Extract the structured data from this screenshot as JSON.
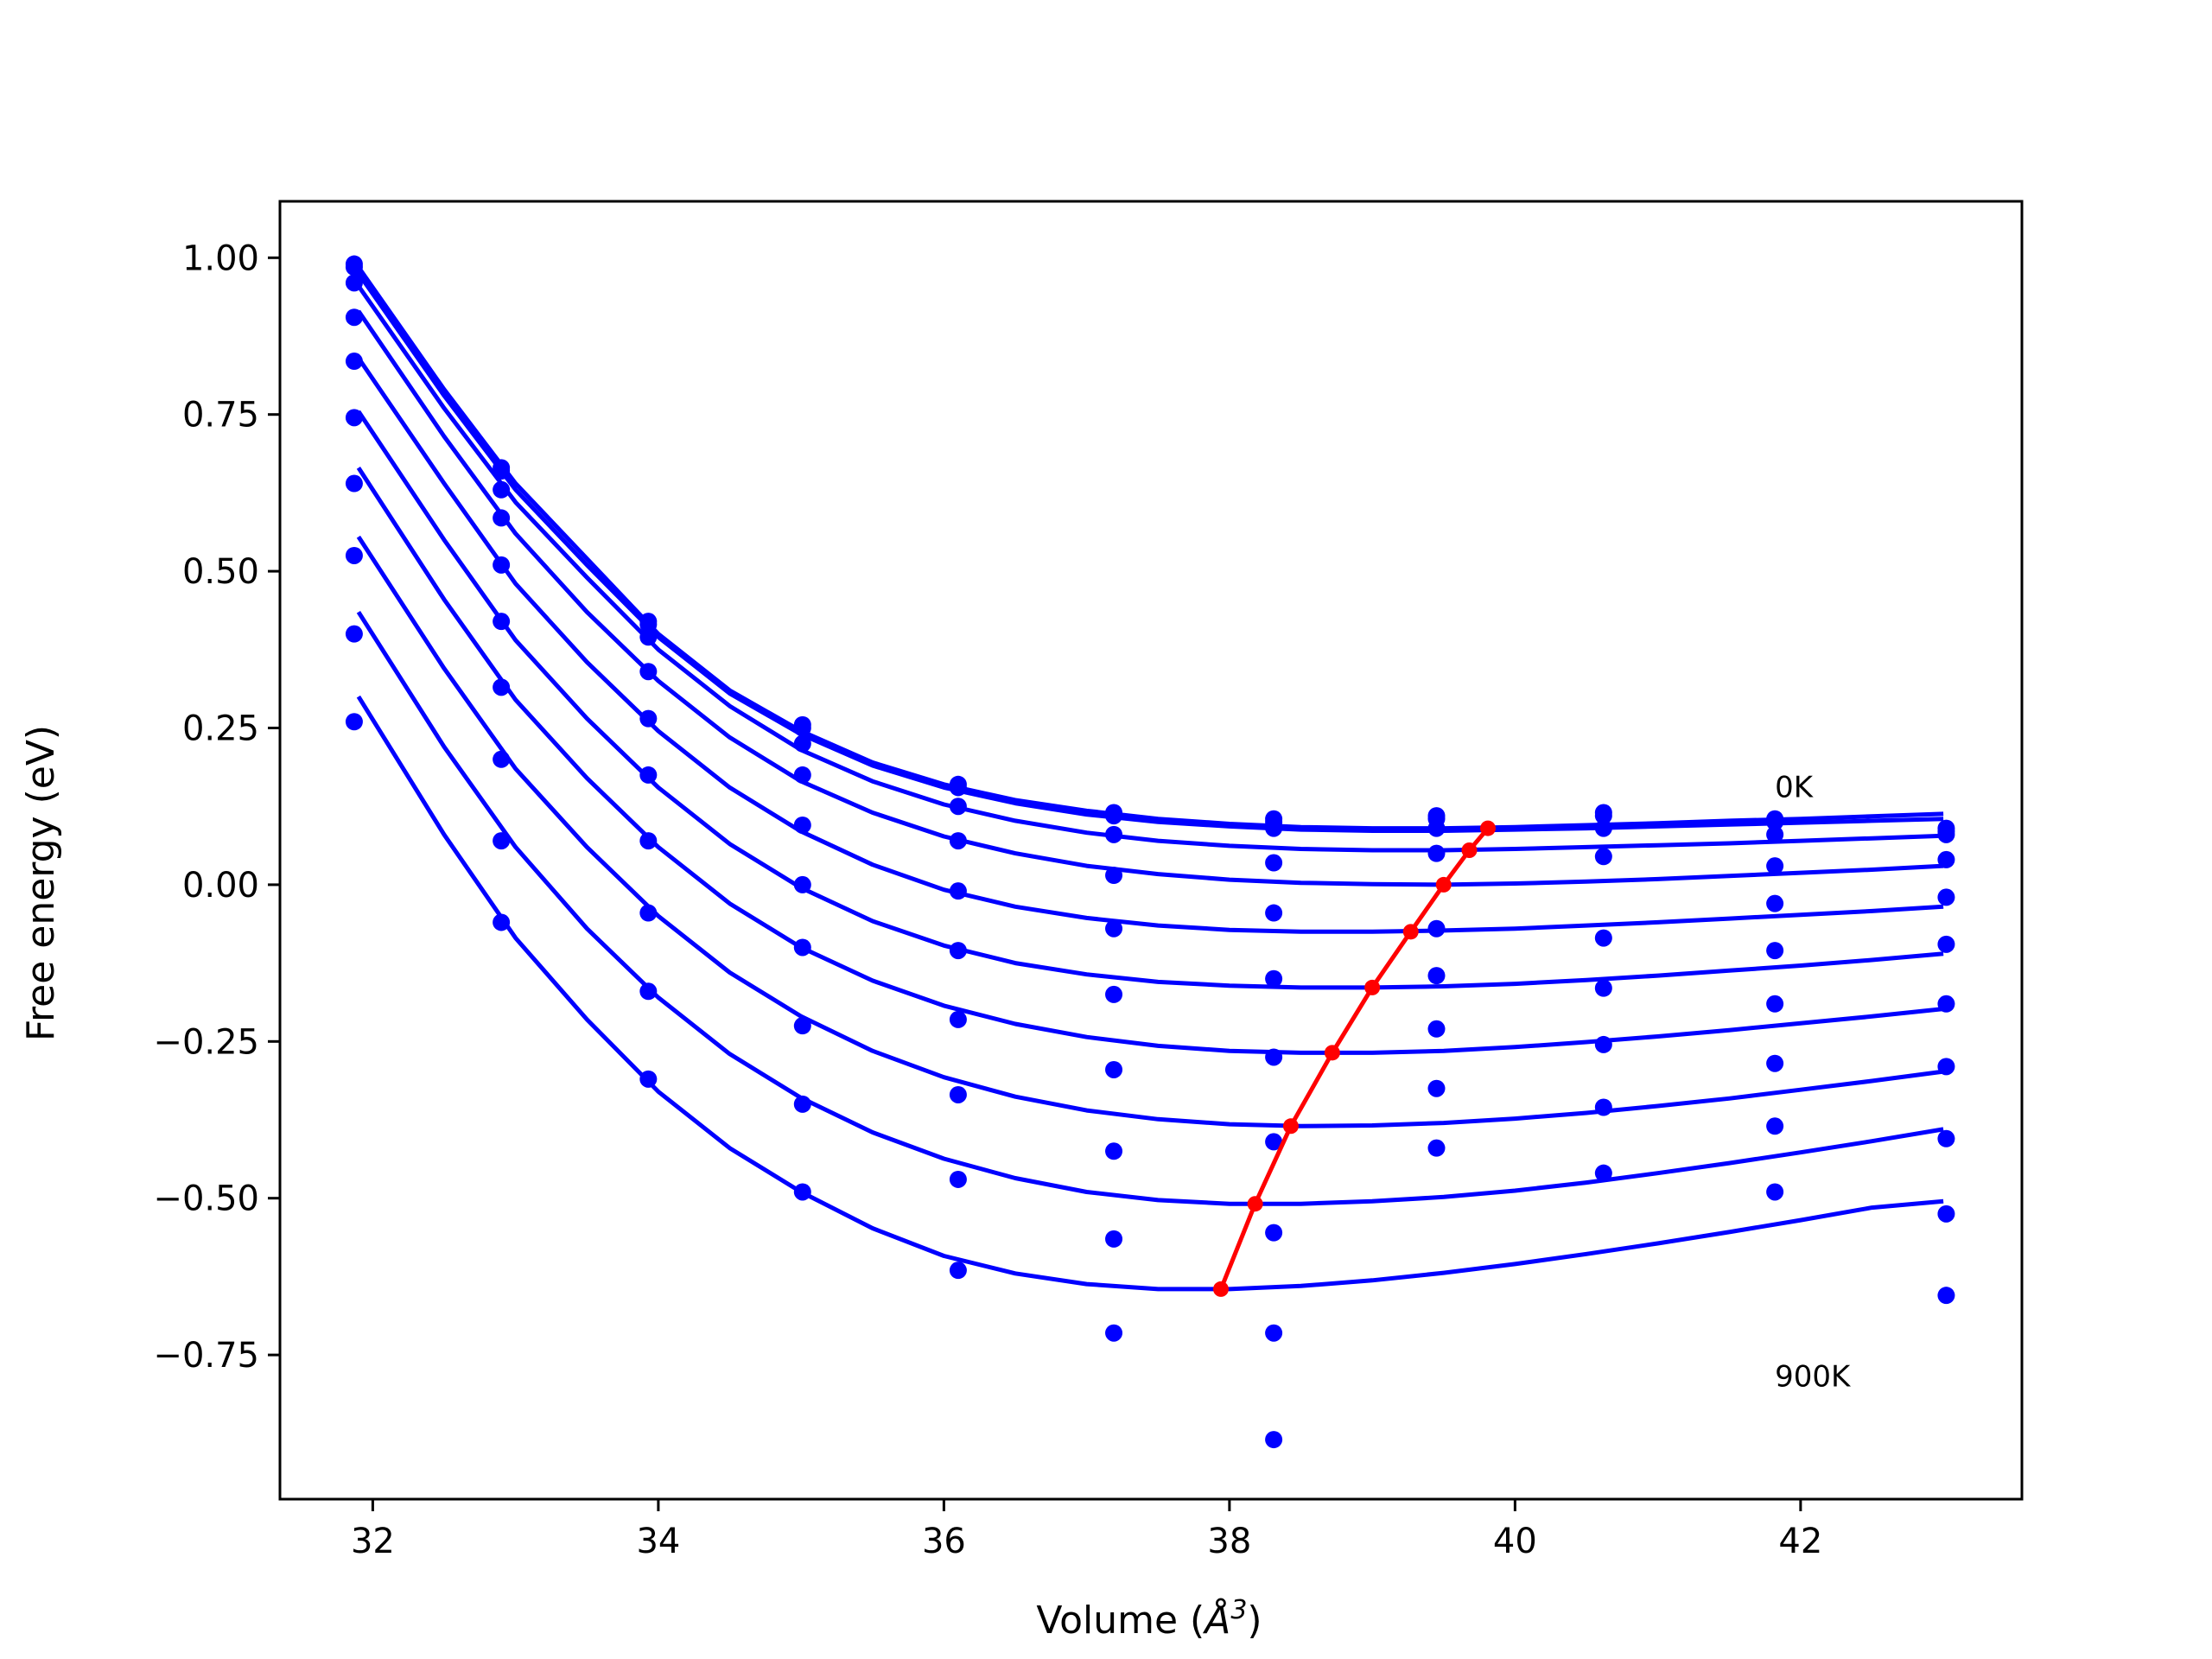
{
  "chart_data": {
    "type": "scatter",
    "xlabel_text": "Volume (",
    "xlabel_unit": "Å",
    "xlabel_sup": "3",
    "xlabel_close": ")",
    "ylabel": "Free energy (eV)",
    "xlim": [
      31.35,
      43.55
    ],
    "ylim": [
      -0.98,
      1.09
    ],
    "xticks": [
      32,
      34,
      36,
      38,
      40,
      42
    ],
    "xtick_labels": [
      "32",
      "34",
      "36",
      "38",
      "40",
      "42"
    ],
    "yticks": [
      1.0,
      0.75,
      0.5,
      0.25,
      0.0,
      -0.25,
      -0.5,
      -0.75
    ],
    "ytick_labels": [
      "1.00",
      "0.75",
      "0.50",
      "0.25",
      "0.00",
      "−0.25",
      "−0.50",
      "−0.75"
    ],
    "annotations": [
      {
        "text": "0K",
        "x": 41.82,
        "y": 0.14
      },
      {
        "text": "900K",
        "x": 41.82,
        "y": -0.8
      }
    ],
    "colors": {
      "points": "#0000ff",
      "fits": "#0000ff",
      "minima": "#ff0000"
    },
    "x": [
      31.87,
      32.9,
      33.93,
      35.01,
      36.1,
      37.19,
      38.31,
      39.45,
      40.62,
      41.82,
      43.02
    ],
    "series": [
      {
        "values": [
          0.99,
          0.665,
          0.42,
          0.255,
          0.16,
          0.115,
          0.105,
          0.11,
          0.115,
          0.105,
          0.09
        ]
      },
      {
        "values": [
          0.985,
          0.66,
          0.415,
          0.25,
          0.155,
          0.11,
          0.1,
          0.105,
          0.11,
          0.1,
          0.085
        ]
      },
      {
        "values": [
          0.96,
          0.63,
          0.395,
          0.225,
          0.125,
          0.08,
          0.09,
          0.09,
          0.09,
          0.08,
          0.08
        ]
      },
      {
        "values": [
          0.905,
          0.585,
          0.34,
          0.175,
          0.07,
          0.015,
          0.035,
          0.05,
          0.045,
          0.03,
          0.04
        ]
      },
      {
        "values": [
          0.835,
          0.51,
          0.265,
          0.095,
          -0.01,
          -0.07,
          -0.045,
          -0.07,
          -0.085,
          -0.03,
          -0.02
        ]
      },
      {
        "values": [
          0.745,
          0.42,
          0.175,
          0.0,
          -0.105,
          -0.175,
          -0.15,
          -0.145,
          -0.165,
          -0.105,
          -0.095
        ]
      },
      {
        "values": [
          0.64,
          0.315,
          0.07,
          -0.1,
          -0.215,
          -0.295,
          -0.275,
          -0.23,
          -0.255,
          -0.19,
          -0.19
        ]
      },
      {
        "values": [
          0.525,
          0.2,
          -0.045,
          -0.225,
          -0.335,
          -0.425,
          -0.41,
          -0.325,
          -0.355,
          -0.285,
          -0.29
        ]
      },
      {
        "values": [
          0.4,
          0.07,
          -0.17,
          -0.35,
          -0.47,
          -0.565,
          -0.555,
          -0.42,
          -0.46,
          -0.385,
          -0.405
        ]
      },
      {
        "values": [
          0.26,
          -0.06,
          -0.31,
          -0.49,
          -0.615,
          -0.715,
          -0.715,
          null,
          null,
          -0.49,
          -0.525
        ]
      },
      {
        "values": [
          null,
          null,
          null,
          null,
          null,
          null,
          -0.885,
          null,
          null,
          null,
          -0.655
        ]
      }
    ],
    "fit_curves": [
      {
        "x": [
          31.9,
          32.5,
          33.0,
          33.5,
          34.0,
          34.5,
          35.0,
          35.5,
          36.0,
          36.5,
          37.0,
          37.5,
          38.0,
          38.5,
          39.0,
          39.5,
          40.0,
          40.5,
          41.0,
          41.5,
          42.0,
          42.5,
          43.0
        ],
        "y": [
          0.985,
          0.79,
          0.64,
          0.52,
          0.4,
          0.31,
          0.245,
          0.195,
          0.16,
          0.135,
          0.118,
          0.105,
          0.097,
          0.092,
          0.09,
          0.09,
          0.092,
          0.095,
          0.098,
          0.102,
          0.105,
          0.109,
          0.113
        ]
      },
      {
        "x": [
          31.9,
          32.5,
          33.0,
          33.5,
          34.0,
          34.5,
          35.0,
          35.5,
          36.0,
          36.5,
          37.0,
          37.5,
          38.0,
          38.5,
          39.0,
          39.5,
          40.0,
          40.5,
          41.0,
          41.5,
          42.0,
          42.5,
          43.0
        ],
        "y": [
          0.975,
          0.78,
          0.63,
          0.51,
          0.395,
          0.305,
          0.24,
          0.19,
          0.155,
          0.13,
          0.112,
          0.1,
          0.093,
          0.088,
          0.086,
          0.086,
          0.088,
          0.09,
          0.093,
          0.096,
          0.099,
          0.102,
          0.105
        ]
      },
      {
        "x": [
          31.9,
          32.5,
          33.0,
          33.5,
          34.0,
          34.5,
          35.0,
          35.5,
          36.0,
          36.5,
          37.0,
          37.5,
          38.0,
          38.5,
          39.0,
          39.5,
          40.0,
          40.5,
          41.0,
          41.5,
          42.0,
          42.5,
          43.0
        ],
        "y": [
          0.955,
          0.76,
          0.61,
          0.49,
          0.375,
          0.285,
          0.215,
          0.165,
          0.128,
          0.102,
          0.083,
          0.07,
          0.062,
          0.057,
          0.055,
          0.055,
          0.057,
          0.06,
          0.063,
          0.066,
          0.07,
          0.074,
          0.078
        ]
      },
      {
        "x": [
          31.9,
          32.5,
          33.0,
          33.5,
          34.0,
          34.5,
          35.0,
          35.5,
          36.0,
          36.5,
          37.0,
          37.5,
          38.0,
          38.5,
          39.0,
          39.5,
          40.0,
          40.5,
          41.0,
          41.5,
          42.0,
          42.5,
          43.0
        ],
        "y": [
          0.915,
          0.715,
          0.56,
          0.435,
          0.325,
          0.235,
          0.165,
          0.115,
          0.077,
          0.05,
          0.03,
          0.017,
          0.008,
          0.003,
          0.001,
          0.0,
          0.002,
          0.005,
          0.009,
          0.014,
          0.019,
          0.024,
          0.03
        ]
      },
      {
        "x": [
          31.9,
          32.5,
          33.0,
          33.5,
          34.0,
          34.5,
          35.0,
          35.5,
          36.0,
          36.5,
          37.0,
          37.5,
          38.0,
          38.5,
          39.0,
          39.5,
          40.0,
          40.5,
          41.0,
          41.5,
          42.0,
          42.5,
          43.0
        ],
        "y": [
          0.84,
          0.64,
          0.48,
          0.355,
          0.245,
          0.155,
          0.085,
          0.032,
          -0.008,
          -0.035,
          -0.053,
          -0.065,
          -0.072,
          -0.075,
          -0.075,
          -0.073,
          -0.07,
          -0.065,
          -0.06,
          -0.054,
          -0.048,
          -0.042,
          -0.035
        ]
      },
      {
        "x": [
          31.9,
          32.5,
          33.0,
          33.5,
          34.0,
          34.5,
          35.0,
          35.5,
          36.0,
          36.5,
          37.0,
          37.5,
          38.0,
          38.5,
          39.0,
          39.5,
          40.0,
          40.5,
          41.0,
          41.5,
          42.0,
          42.5,
          43.0
        ],
        "y": [
          0.755,
          0.55,
          0.39,
          0.265,
          0.155,
          0.065,
          -0.005,
          -0.058,
          -0.097,
          -0.125,
          -0.143,
          -0.155,
          -0.161,
          -0.164,
          -0.164,
          -0.162,
          -0.158,
          -0.152,
          -0.145,
          -0.137,
          -0.129,
          -0.12,
          -0.11
        ]
      },
      {
        "x": [
          31.9,
          32.5,
          33.0,
          33.5,
          34.0,
          34.5,
          35.0,
          35.5,
          36.0,
          36.5,
          37.0,
          37.5,
          38.0,
          38.5,
          39.0,
          39.5,
          40.0,
          40.5,
          41.0,
          41.5,
          42.0,
          42.5,
          43.0
        ],
        "y": [
          0.665,
          0.455,
          0.295,
          0.17,
          0.06,
          -0.03,
          -0.1,
          -0.153,
          -0.193,
          -0.222,
          -0.243,
          -0.257,
          -0.265,
          -0.268,
          -0.268,
          -0.265,
          -0.259,
          -0.251,
          -0.242,
          -0.232,
          -0.221,
          -0.21,
          -0.198
        ]
      },
      {
        "x": [
          31.9,
          32.5,
          33.0,
          33.5,
          34.0,
          34.5,
          35.0,
          35.5,
          36.0,
          36.5,
          37.0,
          37.5,
          38.0,
          38.5,
          39.0,
          39.5,
          40.0,
          40.5,
          41.0,
          41.5,
          42.0,
          42.5,
          43.0
        ],
        "y": [
          0.555,
          0.345,
          0.185,
          0.06,
          -0.05,
          -0.14,
          -0.21,
          -0.265,
          -0.307,
          -0.338,
          -0.36,
          -0.374,
          -0.382,
          -0.385,
          -0.384,
          -0.38,
          -0.373,
          -0.364,
          -0.353,
          -0.341,
          -0.327,
          -0.313,
          -0.298
        ]
      },
      {
        "x": [
          31.9,
          32.5,
          33.0,
          33.5,
          34.0,
          34.5,
          35.0,
          35.5,
          36.0,
          36.5,
          37.0,
          37.5,
          38.0,
          38.5,
          39.0,
          39.5,
          40.0,
          40.5,
          41.0,
          41.5,
          42.0,
          42.5,
          43.0
        ],
        "y": [
          0.435,
          0.22,
          0.06,
          -0.07,
          -0.18,
          -0.27,
          -0.34,
          -0.395,
          -0.437,
          -0.468,
          -0.49,
          -0.503,
          -0.509,
          -0.509,
          -0.505,
          -0.498,
          -0.488,
          -0.475,
          -0.46,
          -0.444,
          -0.427,
          -0.409,
          -0.39
        ]
      },
      {
        "x": [
          31.9,
          32.5,
          33.0,
          33.5,
          34.0,
          34.5,
          35.0,
          35.5,
          36.0,
          36.5,
          37.0,
          37.5,
          38.0,
          38.5,
          39.0,
          39.5,
          40.0,
          40.5,
          41.0,
          41.5,
          42.0,
          42.5,
          43.0
        ],
        "y": [
          0.3,
          0.08,
          -0.085,
          -0.215,
          -0.33,
          -0.42,
          -0.49,
          -0.548,
          -0.592,
          -0.62,
          -0.637,
          -0.645,
          -0.645,
          -0.64,
          -0.631,
          -0.619,
          -0.605,
          -0.589,
          -0.572,
          -0.554,
          -0.535,
          -0.515,
          -0.505
        ]
      }
    ],
    "minima": {
      "x": [
        37.94,
        38.18,
        38.43,
        38.72,
        39.0,
        39.27,
        39.5,
        39.68,
        39.81
      ],
      "y": [
        -0.645,
        -0.509,
        -0.385,
        -0.268,
        -0.164,
        -0.075,
        0.0,
        0.055,
        0.09
      ]
    }
  }
}
